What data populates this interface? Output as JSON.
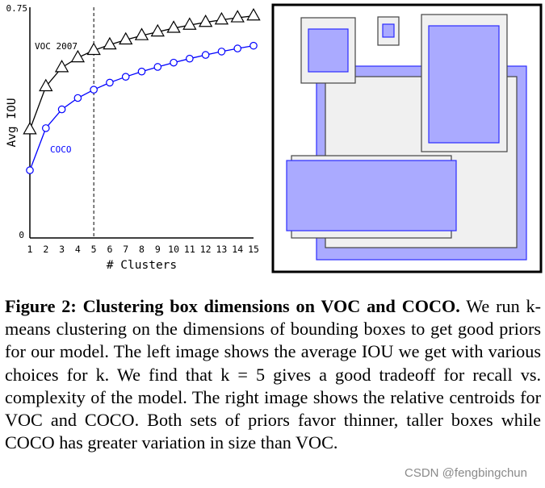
{
  "chart_data": {
    "type": "line",
    "xlabel": "# Clusters",
    "ylabel": "Avg IOU",
    "x": [
      1,
      2,
      3,
      4,
      5,
      6,
      7,
      8,
      9,
      10,
      11,
      12,
      13,
      14,
      15
    ],
    "xlim": [
      1,
      15
    ],
    "ylim": [
      0,
      0.75
    ],
    "y_tick_labels": [
      "0",
      "0.75"
    ],
    "highlight_x": 5,
    "grid": false,
    "series": [
      {
        "name": "VOC 2007",
        "color": "#000000",
        "marker": "triangle",
        "values": [
          0.352,
          0.492,
          0.554,
          0.586,
          0.61,
          0.628,
          0.644,
          0.658,
          0.67,
          0.682,
          0.692,
          0.701,
          0.709,
          0.716,
          0.722
        ]
      },
      {
        "name": "COCO",
        "color": "#0000ff",
        "marker": "circle",
        "values": [
          0.22,
          0.357,
          0.418,
          0.455,
          0.482,
          0.505,
          0.524,
          0.541,
          0.556,
          0.57,
          0.583,
          0.595,
          0.606,
          0.616,
          0.625
        ]
      }
    ]
  },
  "caption": {
    "label": "Figure 2:",
    "title": "Clustering box dimensions on VOC and COCO.",
    "body": "We run k-means clustering on the dimensions of bounding boxes to get good priors for our model. The left image shows the average IOU we get with various choices for k. We find that k = 5 gives a good tradeoff for recall vs. complexity of the model. The right image shows the relative centroids for VOC and COCO. Both sets of priors favor thinner, taller boxes while COCO has greater variation in size than VOC."
  },
  "watermark": "CSDN @fengbingchun",
  "colors": {
    "voc_box_fill": "#f0f0f0",
    "coco_box_fill": "#aaaaff",
    "coco_box_stroke": "#2b2bff"
  }
}
